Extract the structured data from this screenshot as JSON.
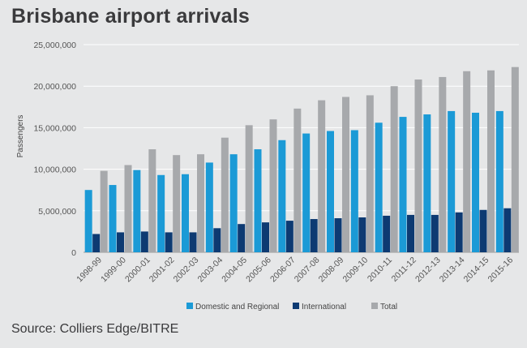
{
  "title": "Brisbane airport arrivals",
  "source": "Source: Colliers Edge/BITRE",
  "chart_data": {
    "type": "bar",
    "ylabel": "Passengers",
    "xlabel": "",
    "ylim": [
      0,
      25000000
    ],
    "yticks": [
      0,
      5000000,
      10000000,
      15000000,
      20000000,
      25000000
    ],
    "ytick_labels": [
      "0",
      "5,000,000",
      "10,000,000",
      "15,000,000",
      "20,000,000",
      "25,000,000"
    ],
    "grid": true,
    "legend_position": "bottom",
    "categories": [
      "1998-99",
      "1999-00",
      "2000-01",
      "2001-02",
      "2002-03",
      "2003-04",
      "2004-05",
      "2005-06",
      "2006-07",
      "2007-08",
      "2008-09",
      "2009-10",
      "2010-11",
      "2011-12",
      "2012-13",
      "2013-14",
      "2014-15",
      "2015-16"
    ],
    "series": [
      {
        "name": "Domestic and Regional",
        "color": "#1b9ad6",
        "values": [
          7500000,
          8100000,
          9900000,
          9300000,
          9400000,
          10800000,
          11800000,
          12400000,
          13500000,
          14300000,
          14600000,
          14700000,
          15600000,
          16300000,
          16600000,
          17000000,
          16800000,
          17000000
        ]
      },
      {
        "name": "International",
        "color": "#0d3a72",
        "values": [
          2200000,
          2400000,
          2500000,
          2400000,
          2400000,
          2900000,
          3400000,
          3600000,
          3800000,
          4000000,
          4100000,
          4200000,
          4400000,
          4500000,
          4500000,
          4800000,
          5100000,
          5300000
        ]
      },
      {
        "name": "Total",
        "color": "#a7a9ac",
        "values": [
          9800000,
          10500000,
          12400000,
          11700000,
          11800000,
          13800000,
          15300000,
          16000000,
          17300000,
          18300000,
          18700000,
          18900000,
          20000000,
          20800000,
          21100000,
          21800000,
          21900000,
          22300000
        ]
      }
    ]
  }
}
